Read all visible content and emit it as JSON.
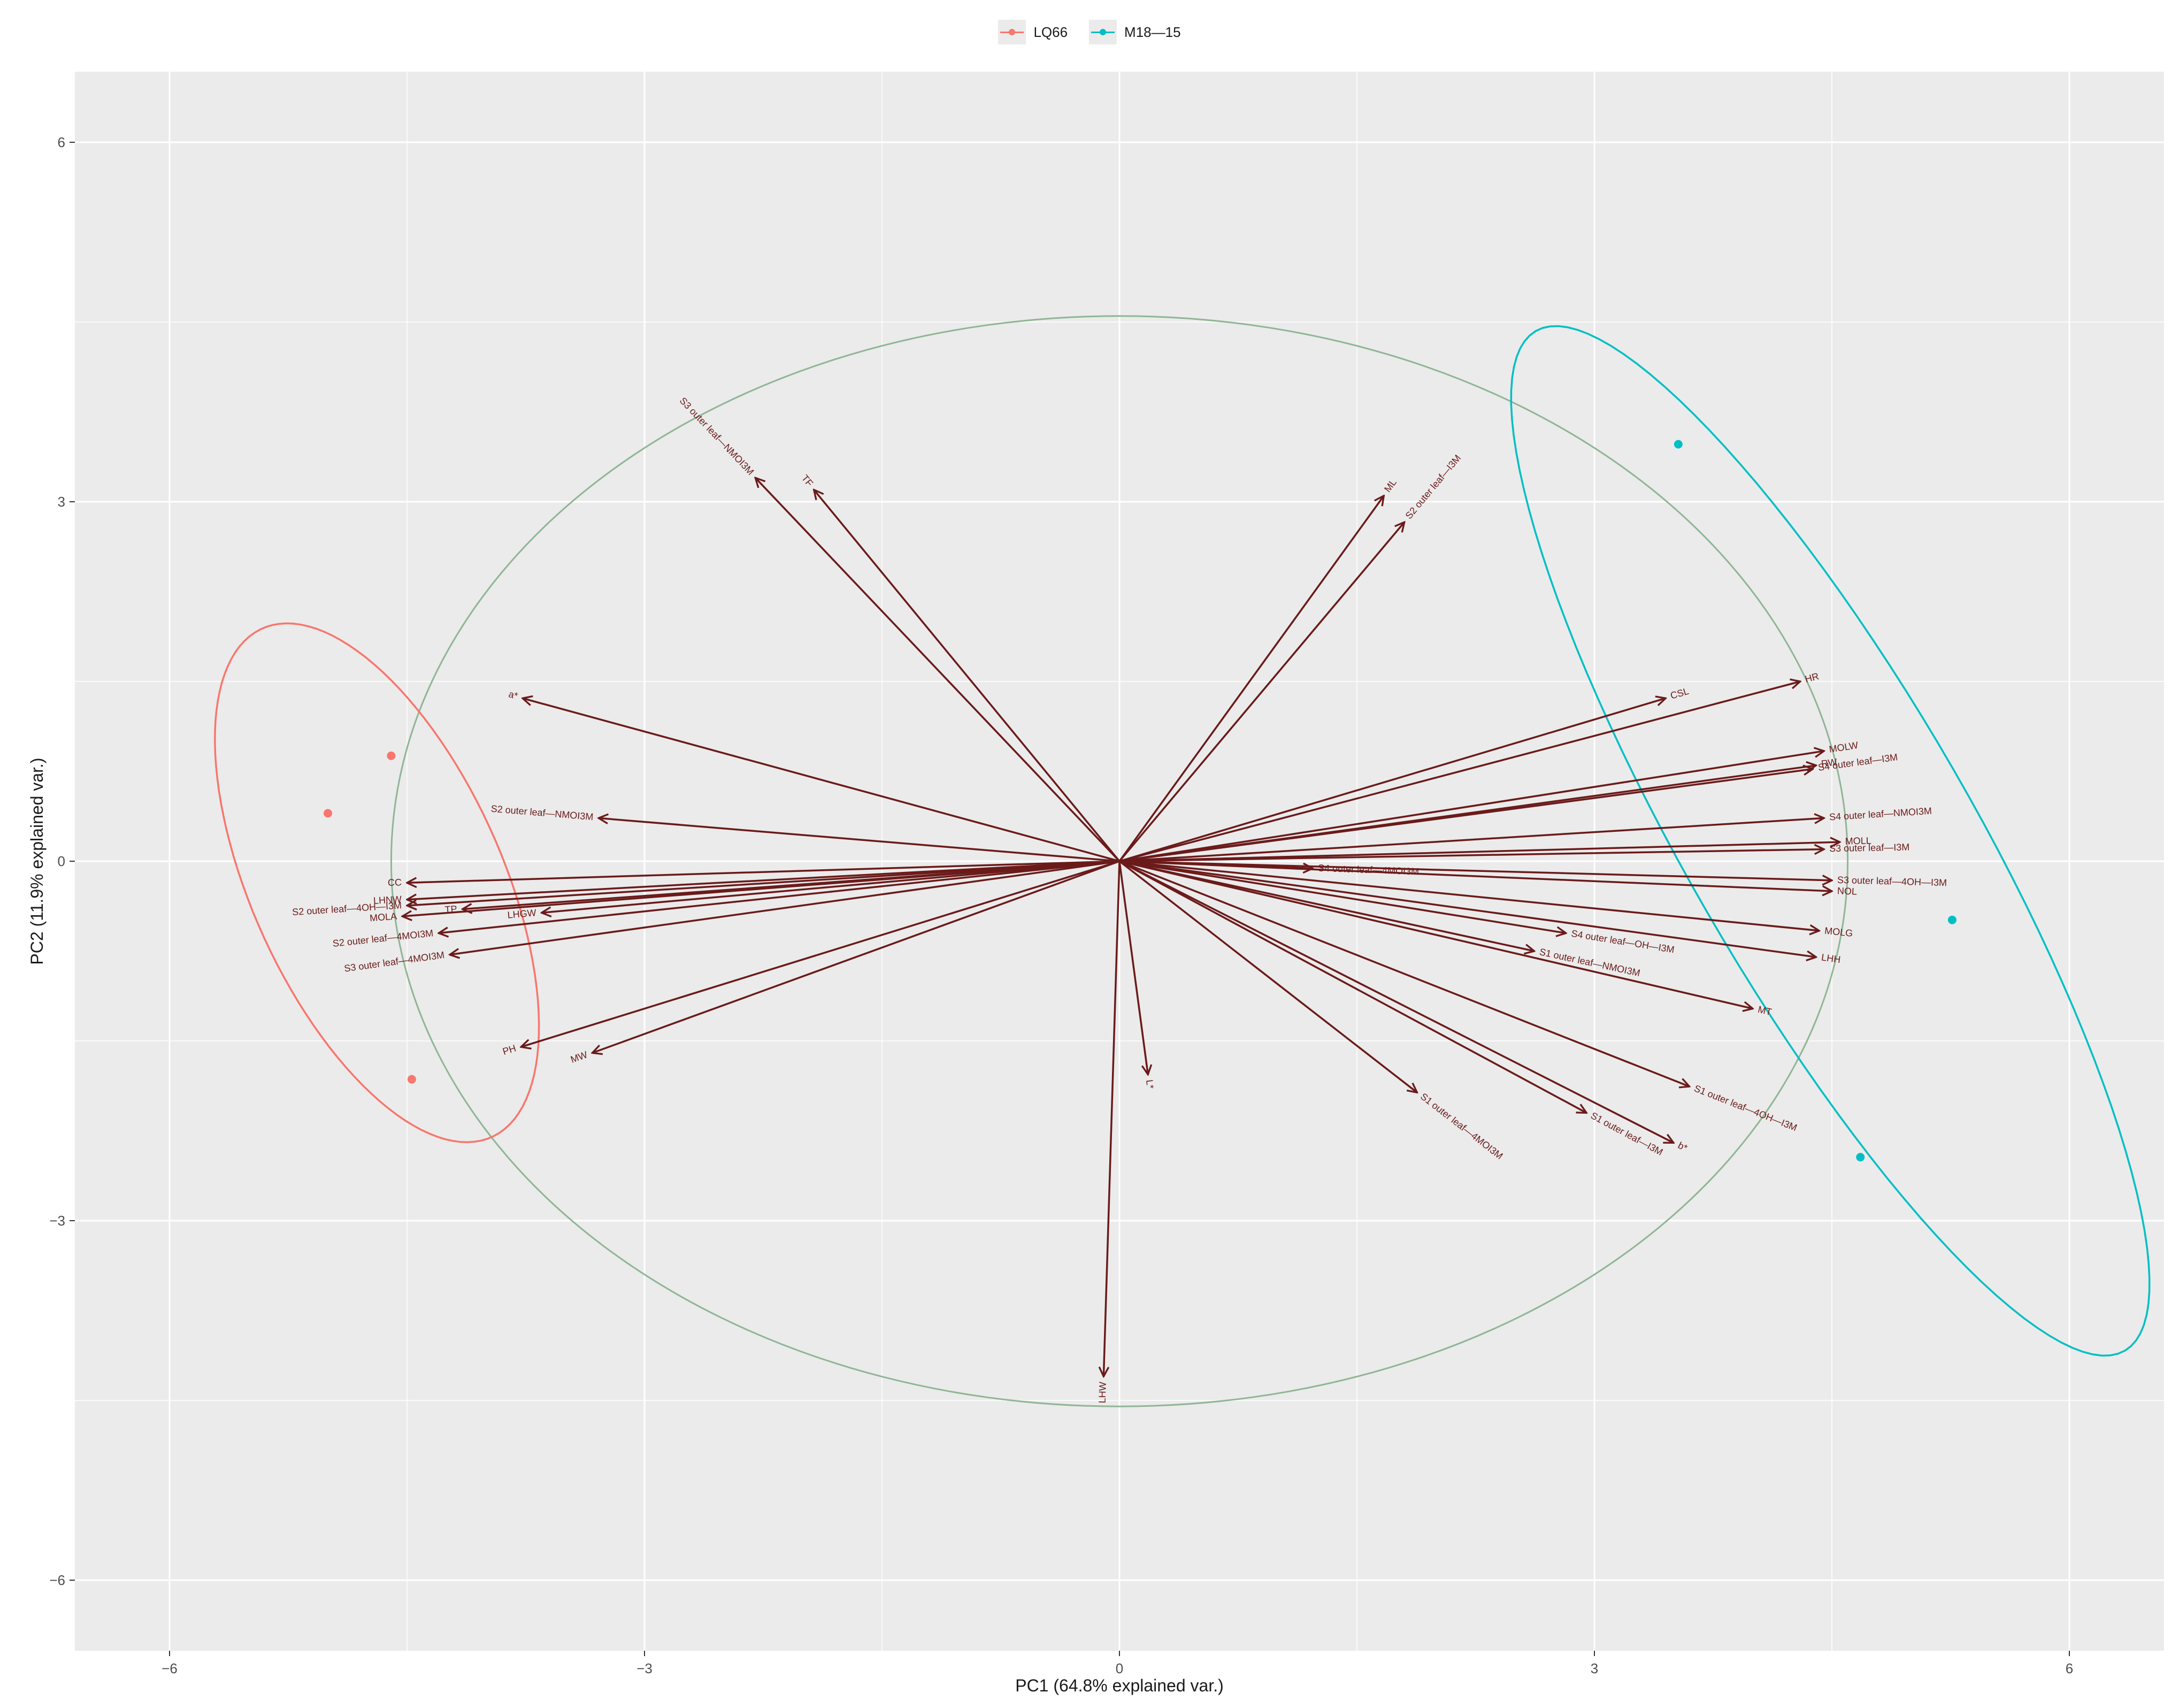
{
  "chart_data": {
    "type": "scatter",
    "subtype": "pca-biplot",
    "title": "",
    "xlabel": "PC1 (64.8% explained var.)",
    "ylabel": "PC2 (11.9% explained var.)",
    "xlim": [
      -6.6,
      6.6
    ],
    "ylim": [
      -6.6,
      6.6
    ],
    "xticks": [
      -6,
      -3,
      0,
      3,
      6
    ],
    "yticks": [
      -6,
      -3,
      0,
      3,
      6
    ],
    "xtick_labels": [
      "−6",
      "−3",
      "0",
      "3",
      "6"
    ],
    "ytick_labels": [
      "−6",
      "−3",
      "0",
      "3",
      "6"
    ],
    "grid": true,
    "legend_position": "top",
    "colors": {
      "panel": "#EBEBEB",
      "grid": "#FFFFFF",
      "arrow": "#6B1A1A",
      "circle": "#8FB596",
      "LQ66": "#F8766D",
      "M18—15": "#00BFC4"
    },
    "series": [
      {
        "name": "LQ66",
        "color": "#F8766D",
        "points": [
          [
            -4.6,
            0.88
          ],
          [
            -5.0,
            0.4
          ],
          [
            -4.47,
            -1.82
          ]
        ],
        "ellipse": {
          "center": [
            -4.69,
            -0.18
          ],
          "semi_major": 2.25,
          "semi_minor": 0.82,
          "angle_deg": 107
        }
      },
      {
        "name": "M18—15",
        "color": "#00BFC4",
        "points": [
          [
            3.53,
            3.48
          ],
          [
            5.26,
            -0.49
          ],
          [
            4.68,
            -2.47
          ]
        ],
        "ellipse": {
          "center": [
            4.49,
            0.17
          ],
          "semi_major": 4.65,
          "semi_minor": 0.95,
          "angle_deg": 113
        }
      }
    ],
    "correlation_circle": {
      "center": [
        0,
        0
      ],
      "radius_x": 4.6,
      "radius_y": 4.55
    },
    "loadings": [
      {
        "name": "S3 outer leaf—NMOI3M",
        "x": -2.3,
        "y": 3.2
      },
      {
        "name": "TF",
        "x": -1.93,
        "y": 3.1
      },
      {
        "name": "ML",
        "x": 1.67,
        "y": 3.05
      },
      {
        "name": "S2 outer leaf—I3M",
        "x": 1.8,
        "y": 2.83
      },
      {
        "name": "CSL",
        "x": 3.45,
        "y": 1.36
      },
      {
        "name": "HR",
        "x": 4.3,
        "y": 1.5
      },
      {
        "name": "MOLW",
        "x": 4.45,
        "y": 0.92
      },
      {
        "name": "RW",
        "x": 4.4,
        "y": 0.8
      },
      {
        "name": "S4 outer leaf—I3M",
        "x": 4.38,
        "y": 0.77
      },
      {
        "name": "S4 outer leaf—NMOI3M",
        "x": 4.45,
        "y": 0.36
      },
      {
        "name": "MOLL",
        "x": 4.55,
        "y": 0.16
      },
      {
        "name": "S3 outer leaf—I3M",
        "x": 4.45,
        "y": 0.1
      },
      {
        "name": "S3 outer leaf—4OH—I3M",
        "x": 4.5,
        "y": -0.16
      },
      {
        "name": "NOL",
        "x": 4.5,
        "y": -0.25
      },
      {
        "name": "MOLG",
        "x": 4.42,
        "y": -0.58
      },
      {
        "name": "LHH",
        "x": 4.4,
        "y": -0.8
      },
      {
        "name": "MT",
        "x": 4.0,
        "y": -1.23
      },
      {
        "name": "S1 outer leaf—4OH—I3M",
        "x": 3.6,
        "y": -1.88
      },
      {
        "name": "b*",
        "x": 3.5,
        "y": -2.35
      },
      {
        "name": "S1 outer leaf—I3M",
        "x": 2.95,
        "y": -2.1
      },
      {
        "name": "S4 outer leaf—OH—I3M",
        "x": 2.82,
        "y": -0.6
      },
      {
        "name": "S1 outer leaf—NMOI3M",
        "x": 2.62,
        "y": -0.75
      },
      {
        "name": "S4 outer leaf—4MOI3M",
        "x": 1.22,
        "y": -0.06
      },
      {
        "name": "S1 outer leaf—4MOI3M",
        "x": 1.88,
        "y": -1.93
      },
      {
        "name": "L*",
        "x": 0.18,
        "y": -1.78
      },
      {
        "name": "LHW",
        "x": -0.1,
        "y": -4.3
      },
      {
        "name": "MW",
        "x": -3.33,
        "y": -1.6
      },
      {
        "name": "PH",
        "x": -3.78,
        "y": -1.55
      },
      {
        "name": "S3 outer leaf—4MOI3M",
        "x": -4.23,
        "y": -0.78
      },
      {
        "name": "S2 outer leaf—4MOI3M",
        "x": -4.3,
        "y": -0.6
      },
      {
        "name": "TP",
        "x": -4.15,
        "y": -0.4
      },
      {
        "name": "LHGW",
        "x": -3.65,
        "y": -0.43
      },
      {
        "name": "MOLA",
        "x": -4.53,
        "y": -0.46
      },
      {
        "name": "S2 outer leaf—4OH—I3M",
        "x": -4.5,
        "y": -0.37
      },
      {
        "name": "LHNW",
        "x": -4.5,
        "y": -0.32
      },
      {
        "name": "CC",
        "x": -4.5,
        "y": -0.18
      },
      {
        "name": "S2 outer leaf—NMOI3M",
        "x": -3.29,
        "y": 0.36
      },
      {
        "name": "a*",
        "x": -3.77,
        "y": 1.36
      }
    ]
  }
}
